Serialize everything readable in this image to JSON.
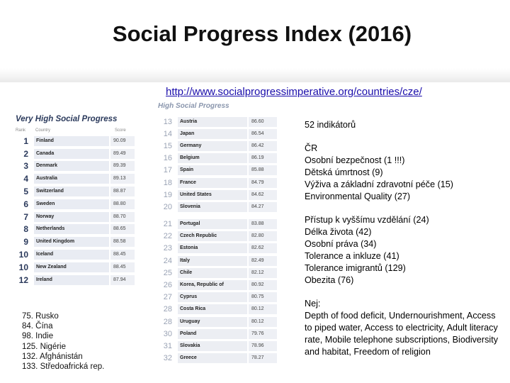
{
  "title": "Social Progress Index (2016)",
  "url": "http://www.socialprogressimperative.org/countries/cze/",
  "very_high": {
    "heading": "Very High Social Progress",
    "col_rank": "Rank",
    "col_country": "Country",
    "col_score": "Score",
    "rows": [
      {
        "rank": "1",
        "country": "Finland",
        "score": "90.09"
      },
      {
        "rank": "2",
        "country": "Canada",
        "score": "89.49"
      },
      {
        "rank": "3",
        "country": "Denmark",
        "score": "89.39"
      },
      {
        "rank": "4",
        "country": "Australia",
        "score": "89.13"
      },
      {
        "rank": "5",
        "country": "Switzerland",
        "score": "88.87"
      },
      {
        "rank": "6",
        "country": "Sweden",
        "score": "88.80"
      },
      {
        "rank": "7",
        "country": "Norway",
        "score": "88.70"
      },
      {
        "rank": "8",
        "country": "Netherlands",
        "score": "88.65"
      },
      {
        "rank": "9",
        "country": "United Kingdom",
        "score": "88.58"
      },
      {
        "rank": "10",
        "country": "Iceland",
        "score": "88.45"
      },
      {
        "rank": "10",
        "country": "New Zealand",
        "score": "88.45"
      },
      {
        "rank": "12",
        "country": "Ireland",
        "score": "87.94"
      }
    ]
  },
  "high": {
    "heading": "High Social Progress",
    "rows_a": [
      {
        "rank": "13",
        "country": "Austria",
        "score": "86.60"
      },
      {
        "rank": "14",
        "country": "Japan",
        "score": "86.54"
      },
      {
        "rank": "15",
        "country": "Germany",
        "score": "86.42"
      },
      {
        "rank": "16",
        "country": "Belgium",
        "score": "86.19"
      },
      {
        "rank": "17",
        "country": "Spain",
        "score": "85.88"
      },
      {
        "rank": "18",
        "country": "France",
        "score": "84.79"
      },
      {
        "rank": "19",
        "country": "United States",
        "score": "84.62"
      },
      {
        "rank": "20",
        "country": "Slovenia",
        "score": "84.27"
      }
    ],
    "rows_b": [
      {
        "rank": "21",
        "country": "Portugal",
        "score": "83.88"
      },
      {
        "rank": "22",
        "country": "Czech Republic",
        "score": "82.80"
      },
      {
        "rank": "23",
        "country": "Estonia",
        "score": "82.62"
      },
      {
        "rank": "24",
        "country": "Italy",
        "score": "82.49"
      },
      {
        "rank": "25",
        "country": "Chile",
        "score": "82.12"
      },
      {
        "rank": "26",
        "country": "Korea, Republic of",
        "score": "80.92"
      },
      {
        "rank": "27",
        "country": "Cyprus",
        "score": "80.75"
      },
      {
        "rank": "28",
        "country": "Costa Rica",
        "score": "80.12"
      },
      {
        "rank": "28",
        "country": "Uruguay",
        "score": "80.12"
      },
      {
        "rank": "30",
        "country": "Poland",
        "score": "79.76"
      },
      {
        "rank": "31",
        "country": "Slovakia",
        "score": "78.96"
      },
      {
        "rank": "32",
        "country": "Greece",
        "score": "78.27"
      }
    ]
  },
  "low_ranks": [
    "75. Rusko",
    "84. Čína",
    "98. Indie",
    "125. Nigérie",
    "132. Afghánistán",
    "133. Středoafrická rep."
  ],
  "indicators": "52 indikátorů",
  "cr_block": [
    "ČR",
    "Osobní bezpečnost (1 !!!)",
    "Dětská úmrtnost (9)",
    "Výživa a základní zdravotní péče (15)",
    "Environmental Quality (27)"
  ],
  "cr_block2": [
    "Přístup k vyššímu vzdělání (24)",
    "Délka života (42)",
    "Osobní práva (34)",
    "Tolerance a inkluze (41)",
    "Tolerance imigrantů (129)",
    "Obezita (76)"
  ],
  "worst": {
    "label": "Nej:",
    "text": "Depth of food deficit, Undernourishment, Access to piped water, Access to electricity, Adult literacy rate, Mobile telephone subscriptions, Biodiversity and habitat, Freedom of religion"
  }
}
